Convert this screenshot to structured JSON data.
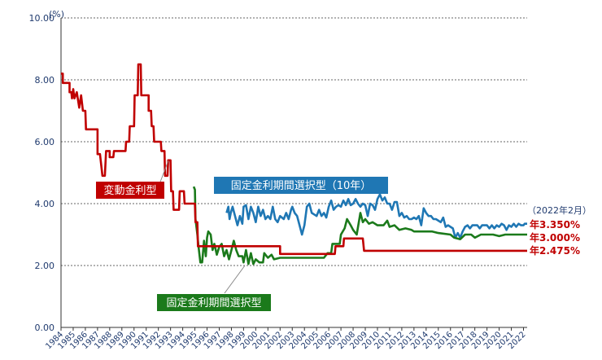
{
  "chart_data": {
    "type": "line",
    "unit_label": "(%)",
    "ylim": [
      0,
      10
    ],
    "y_ticks": [
      "0.00",
      "2.00",
      "4.00",
      "6.00",
      "8.00",
      "10.00"
    ],
    "y_tick_values": [
      0,
      2,
      4,
      6,
      8,
      10
    ],
    "x_ticks": [
      "1984",
      "1985",
      "1986",
      "1987",
      "1988",
      "1989",
      "1990",
      "1991",
      "1992",
      "1993",
      "1994",
      "1995",
      "1996",
      "1997",
      "1998",
      "1999",
      "2000",
      "2001",
      "2002",
      "2003",
      "2004",
      "2005",
      "2006",
      "2007",
      "2008",
      "2009",
      "2010",
      "2011",
      "2012",
      "2013",
      "2014",
      "2015",
      "2016",
      "2017",
      "2018",
      "2019",
      "2020",
      "2021",
      "2022"
    ],
    "xlim": [
      1984.0,
      2022.3
    ],
    "grid": "horizontal-dashed",
    "colors": {
      "variable": "#c00000",
      "fixed_period": "#1b7a1b",
      "fixed_10y": "#1f77b4"
    },
    "series": [
      {
        "key": "variable",
        "name": "変動金利型",
        "points": [
          [
            1984.0,
            8.2
          ],
          [
            1984.15,
            8.2
          ],
          [
            1984.15,
            7.9
          ],
          [
            1984.7,
            7.9
          ],
          [
            1984.7,
            7.6
          ],
          [
            1984.85,
            7.6
          ],
          [
            1984.9,
            7.4
          ],
          [
            1985.0,
            7.7
          ],
          [
            1985.1,
            7.4
          ],
          [
            1985.3,
            7.6
          ],
          [
            1985.5,
            7.1
          ],
          [
            1985.65,
            7.5
          ],
          [
            1985.8,
            7.0
          ],
          [
            1986.0,
            7.0
          ],
          [
            1986.05,
            6.4
          ],
          [
            1987.0,
            6.4
          ],
          [
            1987.0,
            5.6
          ],
          [
            1987.2,
            5.6
          ],
          [
            1987.4,
            4.9
          ],
          [
            1987.6,
            4.9
          ],
          [
            1987.7,
            5.7
          ],
          [
            1988.0,
            5.7
          ],
          [
            1988.0,
            5.5
          ],
          [
            1988.3,
            5.5
          ],
          [
            1988.35,
            5.7
          ],
          [
            1989.3,
            5.7
          ],
          [
            1989.35,
            6.0
          ],
          [
            1989.6,
            6.0
          ],
          [
            1989.65,
            6.5
          ],
          [
            1990.0,
            6.5
          ],
          [
            1990.05,
            7.5
          ],
          [
            1990.3,
            7.5
          ],
          [
            1990.35,
            8.5
          ],
          [
            1990.55,
            8.5
          ],
          [
            1990.6,
            7.5
          ],
          [
            1991.2,
            7.5
          ],
          [
            1991.2,
            7.0
          ],
          [
            1991.4,
            7.0
          ],
          [
            1991.45,
            6.5
          ],
          [
            1991.6,
            6.5
          ],
          [
            1991.65,
            6.0
          ],
          [
            1992.2,
            6.0
          ],
          [
            1992.25,
            5.7
          ],
          [
            1992.5,
            5.7
          ],
          [
            1992.55,
            4.9
          ],
          [
            1992.75,
            4.9
          ],
          [
            1992.8,
            5.4
          ],
          [
            1993.0,
            5.4
          ],
          [
            1993.05,
            4.4
          ],
          [
            1993.2,
            4.4
          ],
          [
            1993.25,
            3.8
          ],
          [
            1993.7,
            3.8
          ],
          [
            1993.75,
            4.4
          ],
          [
            1994.1,
            4.4
          ],
          [
            1994.15,
            4.0
          ],
          [
            1995.0,
            4.0
          ],
          [
            1995.05,
            3.4
          ],
          [
            1995.2,
            3.4
          ],
          [
            1995.25,
            2.625
          ],
          [
            2002.0,
            2.625
          ],
          [
            2002.0,
            2.375
          ],
          [
            2006.5,
            2.375
          ],
          [
            2006.55,
            2.625
          ],
          [
            2007.2,
            2.625
          ],
          [
            2007.25,
            2.875
          ],
          [
            2008.8,
            2.875
          ],
          [
            2008.9,
            2.475
          ],
          [
            2022.3,
            2.475
          ]
        ]
      },
      {
        "key": "fixed_period",
        "name": "固定金利期間選択型",
        "points": [
          [
            1994.9,
            4.55
          ],
          [
            1995.0,
            4.45
          ],
          [
            1995.05,
            3.5
          ],
          [
            1995.2,
            3.0
          ],
          [
            1995.3,
            2.6
          ],
          [
            1995.45,
            2.1
          ],
          [
            1995.6,
            2.1
          ],
          [
            1995.75,
            2.8
          ],
          [
            1995.9,
            2.3
          ],
          [
            1996.0,
            2.9
          ],
          [
            1996.1,
            3.1
          ],
          [
            1996.3,
            3.0
          ],
          [
            1996.45,
            2.5
          ],
          [
            1996.6,
            2.7
          ],
          [
            1996.8,
            2.35
          ],
          [
            1997.0,
            2.6
          ],
          [
            1997.2,
            2.7
          ],
          [
            1997.4,
            2.3
          ],
          [
            1997.6,
            2.5
          ],
          [
            1997.8,
            2.2
          ],
          [
            1998.0,
            2.5
          ],
          [
            1998.2,
            2.8
          ],
          [
            1998.4,
            2.5
          ],
          [
            1998.6,
            2.3
          ],
          [
            1998.9,
            2.3
          ],
          [
            1999.0,
            2.1
          ],
          [
            1999.2,
            2.5
          ],
          [
            1999.4,
            2.05
          ],
          [
            1999.6,
            2.4
          ],
          [
            1999.8,
            2.05
          ],
          [
            2000.0,
            2.2
          ],
          [
            2000.3,
            2.1
          ],
          [
            2000.6,
            2.1
          ],
          [
            2000.7,
            2.4
          ],
          [
            2001.0,
            2.25
          ],
          [
            2001.3,
            2.35
          ],
          [
            2001.5,
            2.2
          ],
          [
            2002.0,
            2.25
          ],
          [
            2002.5,
            2.25
          ],
          [
            2003.0,
            2.25
          ],
          [
            2003.6,
            2.25
          ],
          [
            2004.0,
            2.25
          ],
          [
            2005.0,
            2.25
          ],
          [
            2005.6,
            2.25
          ],
          [
            2005.9,
            2.4
          ],
          [
            2006.2,
            2.4
          ],
          [
            2006.3,
            2.7
          ],
          [
            2006.9,
            2.7
          ],
          [
            2007.0,
            3.0
          ],
          [
            2007.3,
            3.2
          ],
          [
            2007.5,
            3.5
          ],
          [
            2007.8,
            3.3
          ],
          [
            2008.0,
            3.15
          ],
          [
            2008.3,
            3.0
          ],
          [
            2008.6,
            3.7
          ],
          [
            2008.8,
            3.4
          ],
          [
            2009.0,
            3.5
          ],
          [
            2009.3,
            3.35
          ],
          [
            2009.6,
            3.4
          ],
          [
            2010.0,
            3.3
          ],
          [
            2010.5,
            3.3
          ],
          [
            2010.8,
            3.45
          ],
          [
            2011.0,
            3.25
          ],
          [
            2011.4,
            3.3
          ],
          [
            2011.8,
            3.15
          ],
          [
            2012.3,
            3.2
          ],
          [
            2012.8,
            3.15
          ],
          [
            2013.0,
            3.1
          ],
          [
            2014.5,
            3.1
          ],
          [
            2015.0,
            3.05
          ],
          [
            2016.0,
            3.0
          ],
          [
            2016.3,
            2.9
          ],
          [
            2016.8,
            2.85
          ],
          [
            2017.2,
            3.0
          ],
          [
            2017.7,
            3.0
          ],
          [
            2018.0,
            2.9
          ],
          [
            2018.5,
            3.0
          ],
          [
            2019.5,
            3.0
          ],
          [
            2020.0,
            2.95
          ],
          [
            2020.5,
            3.0
          ],
          [
            2022.3,
            3.0
          ]
        ]
      },
      {
        "key": "fixed_10y",
        "name": "固定金利期間選択型（10年）",
        "points": [
          [
            1997.6,
            3.7
          ],
          [
            1997.75,
            3.9
          ],
          [
            1997.85,
            3.5
          ],
          [
            1997.95,
            3.7
          ],
          [
            1998.1,
            3.9
          ],
          [
            1998.3,
            3.6
          ],
          [
            1998.5,
            3.3
          ],
          [
            1998.7,
            3.6
          ],
          [
            1998.9,
            3.35
          ],
          [
            1999.0,
            3.9
          ],
          [
            1999.2,
            3.95
          ],
          [
            1999.4,
            3.5
          ],
          [
            1999.6,
            3.9
          ],
          [
            1999.8,
            3.7
          ],
          [
            2000.0,
            3.4
          ],
          [
            2000.2,
            3.9
          ],
          [
            2000.4,
            3.6
          ],
          [
            2000.6,
            3.8
          ],
          [
            2000.8,
            3.5
          ],
          [
            2001.0,
            3.6
          ],
          [
            2001.2,
            3.5
          ],
          [
            2001.4,
            3.9
          ],
          [
            2001.6,
            3.5
          ],
          [
            2001.8,
            3.4
          ],
          [
            2002.0,
            3.6
          ],
          [
            2002.3,
            3.5
          ],
          [
            2002.5,
            3.7
          ],
          [
            2002.7,
            3.5
          ],
          [
            2002.9,
            3.8
          ],
          [
            2003.0,
            3.9
          ],
          [
            2003.2,
            3.7
          ],
          [
            2003.4,
            3.6
          ],
          [
            2003.6,
            3.3
          ],
          [
            2003.8,
            3.0
          ],
          [
            2004.0,
            3.3
          ],
          [
            2004.2,
            3.9
          ],
          [
            2004.4,
            4.0
          ],
          [
            2004.6,
            3.7
          ],
          [
            2004.8,
            3.65
          ],
          [
            2005.0,
            3.6
          ],
          [
            2005.2,
            3.8
          ],
          [
            2005.4,
            3.6
          ],
          [
            2005.6,
            3.7
          ],
          [
            2005.8,
            3.55
          ],
          [
            2006.0,
            3.9
          ],
          [
            2006.2,
            4.1
          ],
          [
            2006.4,
            3.8
          ],
          [
            2006.6,
            3.9
          ],
          [
            2006.8,
            3.95
          ],
          [
            2007.0,
            3.9
          ],
          [
            2007.2,
            4.1
          ],
          [
            2007.4,
            3.95
          ],
          [
            2007.6,
            4.15
          ],
          [
            2007.8,
            3.95
          ],
          [
            2008.0,
            4.0
          ],
          [
            2008.2,
            4.15
          ],
          [
            2008.4,
            4.0
          ],
          [
            2008.6,
            3.9
          ],
          [
            2008.8,
            4.0
          ],
          [
            2009.0,
            3.95
          ],
          [
            2009.2,
            3.6
          ],
          [
            2009.4,
            4.0
          ],
          [
            2009.6,
            3.95
          ],
          [
            2009.8,
            3.8
          ],
          [
            2010.0,
            4.15
          ],
          [
            2010.2,
            4.3
          ],
          [
            2010.4,
            4.1
          ],
          [
            2010.6,
            4.2
          ],
          [
            2010.8,
            4.0
          ],
          [
            2011.0,
            4.0
          ],
          [
            2011.2,
            3.8
          ],
          [
            2011.4,
            4.05
          ],
          [
            2011.6,
            4.05
          ],
          [
            2011.8,
            3.6
          ],
          [
            2012.0,
            3.7
          ],
          [
            2012.2,
            3.55
          ],
          [
            2012.4,
            3.6
          ],
          [
            2012.6,
            3.5
          ],
          [
            2012.8,
            3.5
          ],
          [
            2013.0,
            3.55
          ],
          [
            2013.2,
            3.5
          ],
          [
            2013.4,
            3.6
          ],
          [
            2013.6,
            3.3
          ],
          [
            2013.8,
            3.85
          ],
          [
            2014.0,
            3.7
          ],
          [
            2014.2,
            3.6
          ],
          [
            2014.4,
            3.6
          ],
          [
            2014.6,
            3.5
          ],
          [
            2014.8,
            3.5
          ],
          [
            2015.0,
            3.45
          ],
          [
            2015.2,
            3.4
          ],
          [
            2015.4,
            3.55
          ],
          [
            2015.6,
            3.25
          ],
          [
            2015.8,
            3.3
          ],
          [
            2016.0,
            3.25
          ],
          [
            2016.2,
            3.2
          ],
          [
            2016.4,
            2.9
          ],
          [
            2016.6,
            3.05
          ],
          [
            2016.8,
            2.9
          ],
          [
            2017.0,
            3.1
          ],
          [
            2017.2,
            3.25
          ],
          [
            2017.4,
            3.3
          ],
          [
            2017.6,
            3.2
          ],
          [
            2017.8,
            3.3
          ],
          [
            2018.0,
            3.3
          ],
          [
            2018.2,
            3.3
          ],
          [
            2018.4,
            3.2
          ],
          [
            2018.6,
            3.3
          ],
          [
            2018.8,
            3.3
          ],
          [
            2019.0,
            3.3
          ],
          [
            2019.2,
            3.2
          ],
          [
            2019.4,
            3.3
          ],
          [
            2019.6,
            3.2
          ],
          [
            2019.8,
            3.3
          ],
          [
            2020.0,
            3.25
          ],
          [
            2020.2,
            3.35
          ],
          [
            2020.4,
            3.3
          ],
          [
            2020.6,
            3.15
          ],
          [
            2020.8,
            3.3
          ],
          [
            2021.0,
            3.25
          ],
          [
            2021.2,
            3.35
          ],
          [
            2021.4,
            3.25
          ],
          [
            2021.6,
            3.35
          ],
          [
            2021.8,
            3.3
          ],
          [
            2022.0,
            3.3
          ],
          [
            2022.1,
            3.35
          ],
          [
            2022.3,
            3.35
          ]
        ]
      }
    ],
    "annotations": {
      "variable_label": "変動金利型",
      "fixed_period_label": "固定金利期間選択型",
      "fixed_10y_label": "固定金利期間選択型（10年）",
      "as_of": "（2022年2月）",
      "end_10y": "年3.350%",
      "end_period": "年3.000%",
      "end_variable": "年2.475%"
    }
  }
}
